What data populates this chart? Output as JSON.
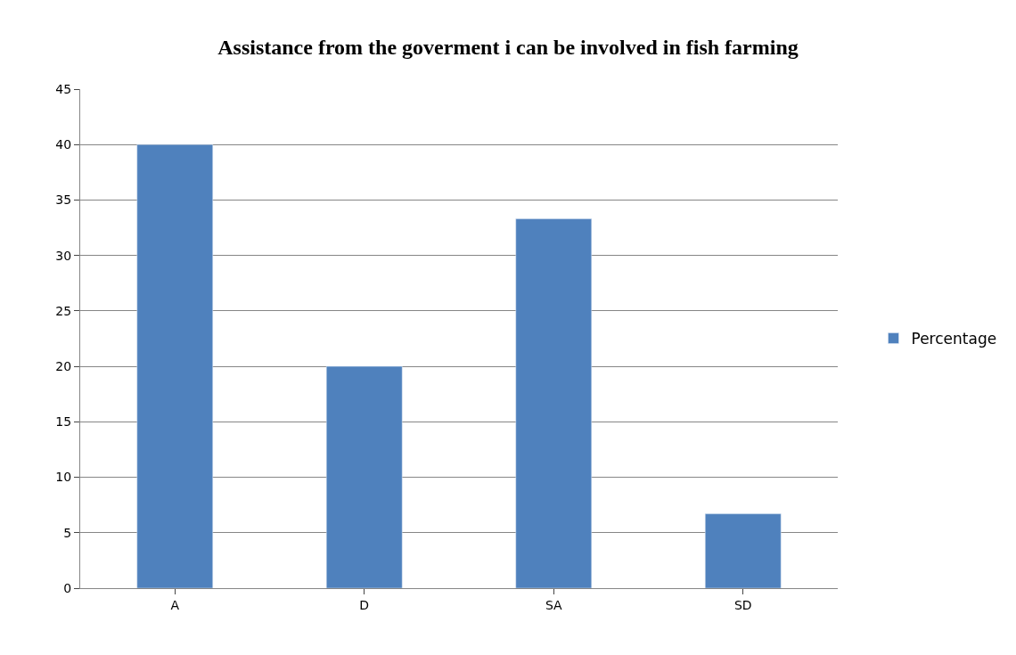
{
  "chart_data": {
    "type": "bar",
    "title": "Assistance from the goverment i can be involved in fish farming",
    "categories": [
      "A",
      "D",
      "SA",
      "SD"
    ],
    "series": [
      {
        "name": "Percentage",
        "color": "#4f81bd",
        "values": [
          40,
          20,
          33.3,
          6.7
        ]
      }
    ],
    "ylim": [
      0,
      45
    ],
    "yticks": [
      0,
      5,
      10,
      15,
      20,
      25,
      30,
      35,
      40,
      45
    ],
    "grid": "y",
    "legend": "right"
  }
}
